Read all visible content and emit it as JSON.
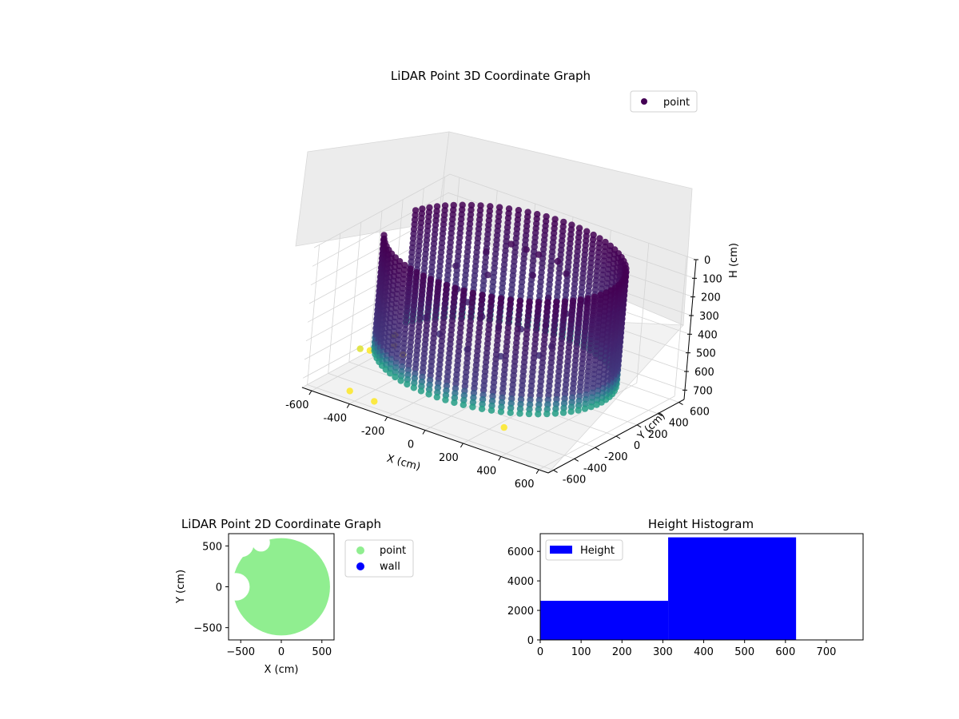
{
  "chart_data": [
    {
      "type": "scatter3d",
      "title": "LiDAR Point 3D Coordinate Graph",
      "xlabel": "X (cm)",
      "ylabel": "Y (cm)",
      "zlabel": "H (cm)",
      "xlim": [
        -650,
        650
      ],
      "ylim": [
        -650,
        650
      ],
      "zlim": [
        0,
        750
      ],
      "z_inverted": true,
      "x_ticks": [
        -600,
        -400,
        -200,
        0,
        200,
        400,
        600
      ],
      "y_ticks": [
        -600,
        -400,
        -200,
        0,
        200,
        400,
        600
      ],
      "z_ticks": [
        0,
        100,
        200,
        300,
        400,
        500,
        600,
        700
      ],
      "grid": true,
      "colormap": "viridis",
      "legend": {
        "placement": "upper-right",
        "entries": [
          {
            "name": "point",
            "color": "#440154"
          }
        ]
      },
      "series": [
        {
          "name": "point",
          "structure": "cylindrical wall of vertical point columns",
          "wall_radius": 560,
          "wall_height_range": [
            0,
            620
          ],
          "opening_angle_deg": [
            170,
            205
          ],
          "interior_points": [
            [
              -100,
              250,
              60
            ],
            [
              -40,
              290,
              80
            ],
            [
              40,
              260,
              70
            ],
            [
              120,
              300,
              90
            ],
            [
              200,
              240,
              110
            ],
            [
              -200,
              200,
              120
            ],
            [
              -260,
              60,
              300
            ],
            [
              -180,
              20,
              330
            ],
            [
              -80,
              -20,
              360
            ],
            [
              20,
              -40,
              380
            ],
            [
              120,
              -10,
              360
            ],
            [
              220,
              40,
              320
            ],
            [
              280,
              120,
              260
            ],
            [
              -320,
              -120,
              420
            ],
            [
              -220,
              -160,
              460
            ],
            [
              -60,
              -180,
              480
            ],
            [
              100,
              -150,
              470
            ],
            [
              260,
              -80,
              430
            ],
            [
              330,
              200,
              200
            ],
            [
              -340,
              180,
              240
            ],
            [
              60,
              180,
              150
            ],
            [
              -140,
              120,
              200
            ],
            [
              180,
              120,
              210
            ],
            [
              300,
              -40,
              380
            ]
          ],
          "outlier_points": [
            [
              -640,
              -120,
              700
            ],
            [
              -620,
              -60,
              720
            ],
            [
              -600,
              120,
              690
            ],
            [
              -560,
              60,
              710
            ],
            [
              -500,
              40,
              730
            ],
            [
              -640,
              220,
              730
            ],
            [
              -470,
              -520,
              745
            ],
            [
              -330,
              -540,
              745
            ],
            [
              240,
              -330,
              748
            ]
          ]
        }
      ]
    },
    {
      "type": "scatter",
      "title": "LiDAR Point 2D Coordinate Graph",
      "xlabel": "X (cm)",
      "ylabel": "Y (cm)",
      "xlim": [
        -650,
        650
      ],
      "ylim": [
        -650,
        650
      ],
      "x_ticks": [
        -500,
        0,
        500
      ],
      "y_ticks": [
        -500,
        0,
        500
      ],
      "legend": {
        "placement": "outside-right",
        "entries": [
          {
            "name": "point",
            "color": "#90ee90"
          },
          {
            "name": "wall",
            "color": "#0000ff"
          }
        ]
      },
      "series": [
        {
          "name": "point",
          "color": "#90ee90",
          "disc_center": [
            0,
            0
          ],
          "disc_radius": 600,
          "gaps": [
            [
              -500,
              520,
              160
            ],
            [
              -560,
              0,
              170
            ],
            [
              -250,
              540,
              110
            ]
          ]
        },
        {
          "name": "wall",
          "color": "#0000ff"
        }
      ]
    },
    {
      "type": "bar",
      "title": "Height Histogram",
      "xlim": [
        0,
        790
      ],
      "ylim": [
        0,
        7200
      ],
      "x_ticks": [
        0,
        100,
        200,
        300,
        400,
        500,
        600,
        700
      ],
      "y_ticks": [
        0,
        2000,
        4000,
        6000
      ],
      "legend": {
        "placement": "upper-left",
        "entries": [
          {
            "name": "Height",
            "color": "#0000ff"
          }
        ]
      },
      "series": [
        {
          "name": "Height",
          "color": "#0000ff",
          "bins": [
            [
              0,
              313,
              2650
            ],
            [
              313,
              626,
              6950
            ]
          ]
        }
      ]
    }
  ]
}
